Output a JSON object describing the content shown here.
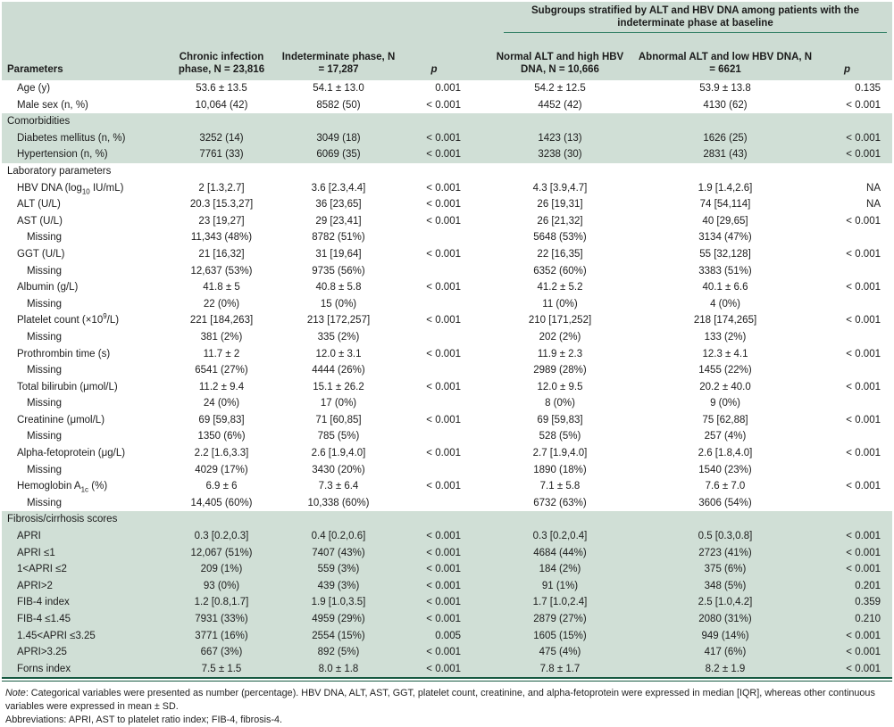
{
  "colors": {
    "header_bg": "#cddcd3",
    "band_bg": "#d0dfd6",
    "spanner_rule": "#2f7e63",
    "bottom_rule": "#175a42"
  },
  "table": {
    "spanner_header": "Subgroups stratified by ALT and HBV DNA among patients with the indeterminate phase at baseline",
    "columns": [
      "Parameters",
      "Chronic infection phase, N = 23,816",
      "Indeterminate phase, N = 17,287",
      "p",
      "Normal ALT and high HBV DNA, N = 10,666",
      "Abnormal ALT and low HBV DNA, N = 6621",
      "p"
    ],
    "rows": [
      {
        "label": "Age (y)",
        "type": "param-row",
        "shaded": false,
        "values": [
          "53.6 ± 13.5",
          "54.1 ± 13.0",
          "0.001",
          "54.2 ± 12.5",
          "53.9 ± 13.8",
          "0.135"
        ]
      },
      {
        "label": "Male sex (n, %)",
        "type": "param-row",
        "shaded": false,
        "values": [
          "10,064 (42)",
          "8582 (50)",
          "< 0.001",
          "4452 (42)",
          "4130 (62)",
          "< 0.001"
        ]
      },
      {
        "label": "Comorbidities",
        "type": "section",
        "shaded": true,
        "values": [
          "",
          "",
          "",
          "",
          "",
          ""
        ]
      },
      {
        "label": "Diabetes mellitus (n, %)",
        "type": "param-row",
        "shaded": true,
        "values": [
          "3252 (14)",
          "3049 (18)",
          "< 0.001",
          "1423 (13)",
          "1626 (25)",
          "< 0.001"
        ]
      },
      {
        "label": "Hypertension (n, %)",
        "type": "param-row",
        "shaded": true,
        "values": [
          "7761 (33)",
          "6069 (35)",
          "< 0.001",
          "3238 (30)",
          "2831 (43)",
          "< 0.001"
        ]
      },
      {
        "label": "Laboratory parameters",
        "type": "section",
        "shaded": false,
        "values": [
          "",
          "",
          "",
          "",
          "",
          ""
        ]
      },
      {
        "label": "HBV DNA (log~10~ IU/mL)",
        "type": "param-row",
        "shaded": false,
        "values": [
          "2 [1.3,2.7]",
          "3.6 [2.3,4.4]",
          "< 0.001",
          "4.3 [3.9,4.7]",
          "1.9 [1.4,2.6]",
          "NA"
        ]
      },
      {
        "label": "ALT (U/L)",
        "type": "param-row",
        "shaded": false,
        "values": [
          "20.3 [15.3,27]",
          "36 [23,65]",
          "< 0.001",
          "26 [19,31]",
          "74 [54,114]",
          "NA"
        ]
      },
      {
        "label": "AST (U/L)",
        "type": "param-row",
        "shaded": false,
        "values": [
          "23 [19,27]",
          "29 [23,41]",
          "< 0.001",
          "26 [21,32]",
          "40 [29,65]",
          "< 0.001"
        ]
      },
      {
        "label": "Missing",
        "type": "missing",
        "shaded": false,
        "values": [
          "11,343 (48%)",
          "8782 (51%)",
          "",
          "5648 (53%)",
          "3134 (47%)",
          ""
        ]
      },
      {
        "label": "GGT (U/L)",
        "type": "param-row",
        "shaded": false,
        "values": [
          "21 [16,32]",
          "31 [19,64]",
          "< 0.001",
          "22 [16,35]",
          "55 [32,128]",
          "< 0.001"
        ]
      },
      {
        "label": "Missing",
        "type": "missing",
        "shaded": false,
        "values": [
          "12,637 (53%)",
          "9735 (56%)",
          "",
          "6352 (60%)",
          "3383 (51%)",
          ""
        ]
      },
      {
        "label": "Albumin (g/L)",
        "type": "param-row",
        "shaded": false,
        "values": [
          "41.8 ± 5",
          "40.8 ± 5.8",
          "< 0.001",
          "41.2 ± 5.2",
          "40.1 ± 6.6",
          "< 0.001"
        ]
      },
      {
        "label": "Missing",
        "type": "missing",
        "shaded": false,
        "values": [
          "22 (0%)",
          "15 (0%)",
          "",
          "11 (0%)",
          "4 (0%)",
          ""
        ]
      },
      {
        "label": "Platelet count (×10^9^/L)",
        "type": "param-row",
        "shaded": false,
        "values": [
          "221 [184,263]",
          "213 [172,257]",
          "< 0.001",
          "210 [171,252]",
          "218 [174,265]",
          "< 0.001"
        ]
      },
      {
        "label": "Missing",
        "type": "missing",
        "shaded": false,
        "values": [
          "381 (2%)",
          "335 (2%)",
          "",
          "202 (2%)",
          "133 (2%)",
          ""
        ]
      },
      {
        "label": "Prothrombin time (s)",
        "type": "param-row",
        "shaded": false,
        "values": [
          "11.7 ± 2",
          "12.0 ± 3.1",
          "< 0.001",
          "11.9 ± 2.3",
          "12.3 ± 4.1",
          "< 0.001"
        ]
      },
      {
        "label": "Missing",
        "type": "missing",
        "shaded": false,
        "values": [
          "6541 (27%)",
          "4444 (26%)",
          "",
          "2989 (28%)",
          "1455 (22%)",
          ""
        ]
      },
      {
        "label": "Total bilirubin (μmol/L)",
        "type": "param-row",
        "shaded": false,
        "values": [
          "11.2 ± 9.4",
          "15.1 ± 26.2",
          "< 0.001",
          "12.0 ± 9.5",
          "20.2 ± 40.0",
          "< 0.001"
        ]
      },
      {
        "label": "Missing",
        "type": "missing",
        "shaded": false,
        "values": [
          "24 (0%)",
          "17 (0%)",
          "",
          "8 (0%)",
          "9 (0%)",
          ""
        ]
      },
      {
        "label": "Creatinine (μmol/L)",
        "type": "param-row",
        "shaded": false,
        "values": [
          "69 [59,83]",
          "71 [60,85]",
          "< 0.001",
          "69 [59,83]",
          "75 [62,88]",
          "< 0.001"
        ]
      },
      {
        "label": "Missing",
        "type": "missing",
        "shaded": false,
        "values": [
          "1350 (6%)",
          "785 (5%)",
          "",
          "528 (5%)",
          "257 (4%)",
          ""
        ]
      },
      {
        "label": "Alpha-fetoprotein (μg/L)",
        "type": "param-row",
        "shaded": false,
        "values": [
          "2.2 [1.6,3.3]",
          "2.6 [1.9,4.0]",
          "< 0.001",
          "2.7 [1.9,4.0]",
          "2.6 [1.8,4.0]",
          "< 0.001"
        ]
      },
      {
        "label": "Missing",
        "type": "missing",
        "shaded": false,
        "values": [
          "4029 (17%)",
          "3430 (20%)",
          "",
          "1890 (18%)",
          "1540 (23%)",
          ""
        ]
      },
      {
        "label": "Hemoglobin A~1c~ (%)",
        "type": "param-row",
        "shaded": false,
        "values": [
          "6.9 ± 6",
          "7.3 ± 6.4",
          "< 0.001",
          "7.1 ± 5.8",
          "7.6 ± 7.0",
          "< 0.001"
        ]
      },
      {
        "label": "Missing",
        "type": "missing",
        "shaded": false,
        "values": [
          "14,405 (60%)",
          "10,338 (60%)",
          "",
          "6732 (63%)",
          "3606 (54%)",
          ""
        ]
      },
      {
        "label": "Fibrosis/cirrhosis scores",
        "type": "section",
        "shaded": true,
        "values": [
          "",
          "",
          "",
          "",
          "",
          ""
        ]
      },
      {
        "label": "APRI",
        "type": "param-row",
        "shaded": true,
        "values": [
          "0.3 [0.2,0.3]",
          "0.4 [0.2,0.6]",
          "< 0.001",
          "0.3 [0.2,0.4]",
          "0.5 [0.3,0.8]",
          "< 0.001"
        ]
      },
      {
        "label": "APRI ≤1",
        "type": "param-row",
        "shaded": true,
        "values": [
          "12,067 (51%)",
          "7407 (43%)",
          "< 0.001",
          "4684 (44%)",
          "2723 (41%)",
          "< 0.001"
        ]
      },
      {
        "label": "1<APRI ≤2",
        "type": "param-row",
        "shaded": true,
        "values": [
          "209 (1%)",
          "559 (3%)",
          "< 0.001",
          "184 (2%)",
          "375 (6%)",
          "< 0.001"
        ]
      },
      {
        "label": "APRI>2",
        "type": "param-row",
        "shaded": true,
        "values": [
          "93 (0%)",
          "439 (3%)",
          "< 0.001",
          "91 (1%)",
          "348 (5%)",
          "0.201"
        ]
      },
      {
        "label": "FIB-4 index",
        "type": "param-row",
        "shaded": true,
        "values": [
          "1.2 [0.8,1.7]",
          "1.9 [1.0,3.5]",
          "< 0.001",
          "1.7 [1.0,2.4]",
          "2.5 [1.0,4.2]",
          "0.359"
        ]
      },
      {
        "label": "FIB-4 ≤1.45",
        "type": "param-row",
        "shaded": true,
        "values": [
          "7931 (33%)",
          "4959 (29%)",
          "< 0.001",
          "2879 (27%)",
          "2080 (31%)",
          "0.210"
        ]
      },
      {
        "label": "1.45<APRI ≤3.25",
        "type": "param-row",
        "shaded": true,
        "values": [
          "3771 (16%)",
          "2554 (15%)",
          "0.005",
          "1605 (15%)",
          "949 (14%)",
          "< 0.001"
        ]
      },
      {
        "label": "APRI>3.25",
        "type": "param-row",
        "shaded": true,
        "values": [
          "667 (3%)",
          "892 (5%)",
          "< 0.001",
          "475 (4%)",
          "417 (6%)",
          "< 0.001"
        ]
      },
      {
        "label": "Forns index",
        "type": "param-row",
        "shaded": true,
        "values": [
          "7.5 ± 1.5",
          "8.0 ± 1.8",
          "< 0.001",
          "7.8 ± 1.7",
          "8.2 ± 1.9",
          "< 0.001"
        ]
      }
    ]
  },
  "notes": {
    "note_label": "Note",
    "note_body": ": Categorical variables were presented as number (percentage). HBV DNA, ALT, AST, GGT, platelet count, creatinine, and alpha-fetoprotein were expressed in median [IQR], whereas other continuous variables were expressed in mean ± SD.",
    "abbreviations": "Abbreviations: APRI, AST to platelet ratio index; FIB-4, fibrosis-4."
  }
}
